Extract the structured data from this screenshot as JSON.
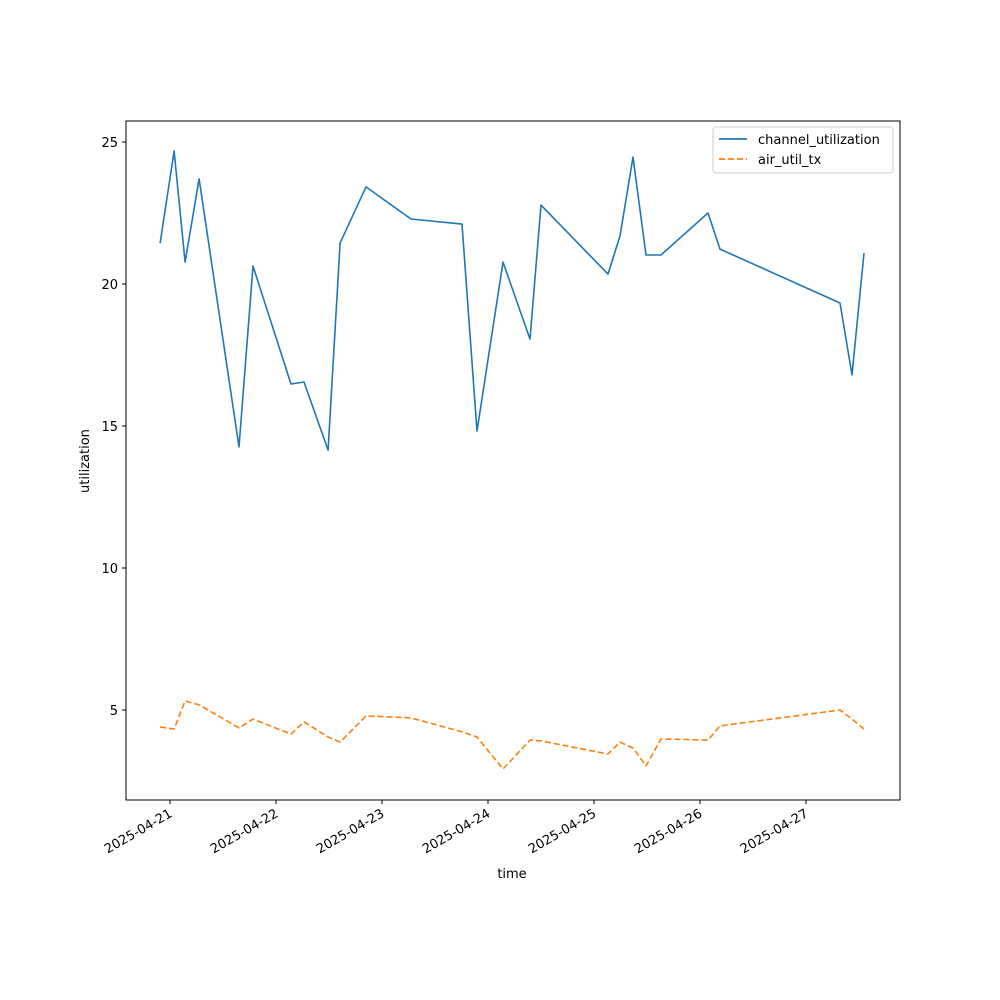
{
  "chart_data": {
    "type": "line",
    "title": "",
    "xlabel": "time",
    "ylabel": "utilization",
    "xlim": [
      "2025-04-20T14:02",
      "2025-04-27T21:17"
    ],
    "ylim": [
      1.83,
      25.74
    ],
    "yticks": [
      5,
      10,
      15,
      20,
      25
    ],
    "xticks": [
      "2025-04-21",
      "2025-04-22",
      "2025-04-23",
      "2025-04-24",
      "2025-04-25",
      "2025-04-26",
      "2025-04-27"
    ],
    "grid": false,
    "legend_position": "top-right",
    "x": [
      "2025-04-20T21:45",
      "2025-04-21T00:55",
      "2025-04-21T03:25",
      "2025-04-21T06:35",
      "2025-04-21T15:37",
      "2025-04-21T18:47",
      "2025-04-22T03:24",
      "2025-04-22T06:20",
      "2025-04-22T11:47",
      "2025-04-22T14:30",
      "2025-04-22T20:23",
      "2025-04-23T06:34",
      "2025-04-23T18:07",
      "2025-04-23T21:30",
      "2025-04-24T03:24",
      "2025-04-24T09:30",
      "2025-04-24T12:00",
      "2025-04-25T03:10",
      "2025-04-25T05:53",
      "2025-04-25T08:50",
      "2025-04-25T11:47",
      "2025-04-25T15:10",
      "2025-04-26T01:48",
      "2025-04-26T04:32",
      "2025-04-27T07:42",
      "2025-04-27T10:25",
      "2025-04-27T13:08"
    ],
    "series": [
      {
        "name": "channel_utilization",
        "color": "#1f77b4",
        "style": "solid",
        "values": [
          21.44,
          24.68,
          20.77,
          23.7,
          14.26,
          20.63,
          16.48,
          16.55,
          14.15,
          21.44,
          23.42,
          22.29,
          22.11,
          14.82,
          20.77,
          18.06,
          22.78,
          20.35,
          21.69,
          24.47,
          21.02,
          21.02,
          22.5,
          21.23,
          19.33,
          16.8,
          21.09
        ]
      },
      {
        "name": "air_util_tx",
        "color": "#ff7f0e",
        "style": "dashed",
        "values": [
          4.4,
          4.33,
          5.32,
          5.18,
          4.37,
          4.68,
          4.15,
          4.58,
          4.05,
          3.87,
          4.79,
          4.72,
          4.23,
          4.05,
          2.92,
          3.94,
          3.91,
          3.45,
          3.87,
          3.66,
          3.03,
          3.98,
          3.94,
          4.44,
          5.0,
          4.68,
          4.33
        ]
      }
    ]
  }
}
